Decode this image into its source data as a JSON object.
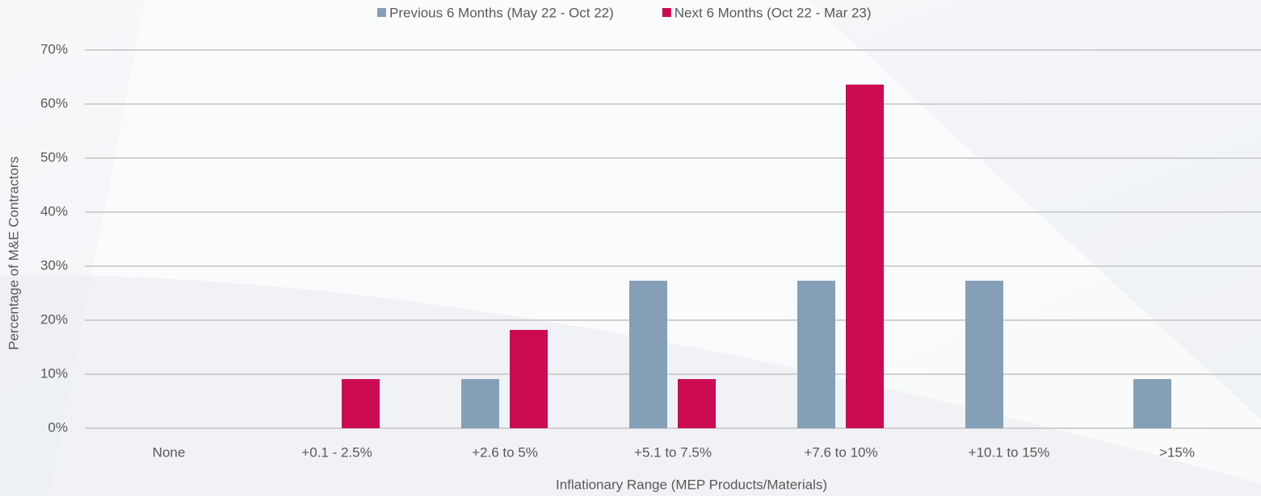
{
  "chart_data": {
    "type": "bar",
    "x_label": "Inflationary Range (MEP Products/Materials)",
    "y_label": "Percentage of M&E Contractors",
    "categories": [
      "None",
      "+0.1 - 2.5%",
      "+2.6 to 5%",
      "+5.1 to 7.5%",
      "+7.6 to 10%",
      "+10.1 to 15%",
      ">15%"
    ],
    "series": [
      {
        "name": "Previous 6 Months (May 22 - Oct 22)",
        "color": "#859fb7",
        "values": [
          0,
          0,
          9.1,
          27.3,
          27.3,
          27.3,
          9.1
        ]
      },
      {
        "name": "Next 6 Months (Oct 22 - Mar 23)",
        "color": "#cc0a52",
        "values": [
          0,
          9.1,
          18.2,
          9.1,
          63.6,
          0,
          0
        ]
      }
    ],
    "ylim": [
      0,
      70
    ],
    "yticks": [
      {
        "value": 0,
        "label": "0%"
      },
      {
        "value": 10,
        "label": "10%"
      },
      {
        "value": 20,
        "label": "20%"
      },
      {
        "value": 30,
        "label": "30%"
      },
      {
        "value": 40,
        "label": "40%"
      },
      {
        "value": 50,
        "label": "50%"
      },
      {
        "value": 60,
        "label": "60%"
      },
      {
        "value": 70,
        "label": "70%"
      }
    ],
    "grid": true,
    "legend": "top"
  }
}
